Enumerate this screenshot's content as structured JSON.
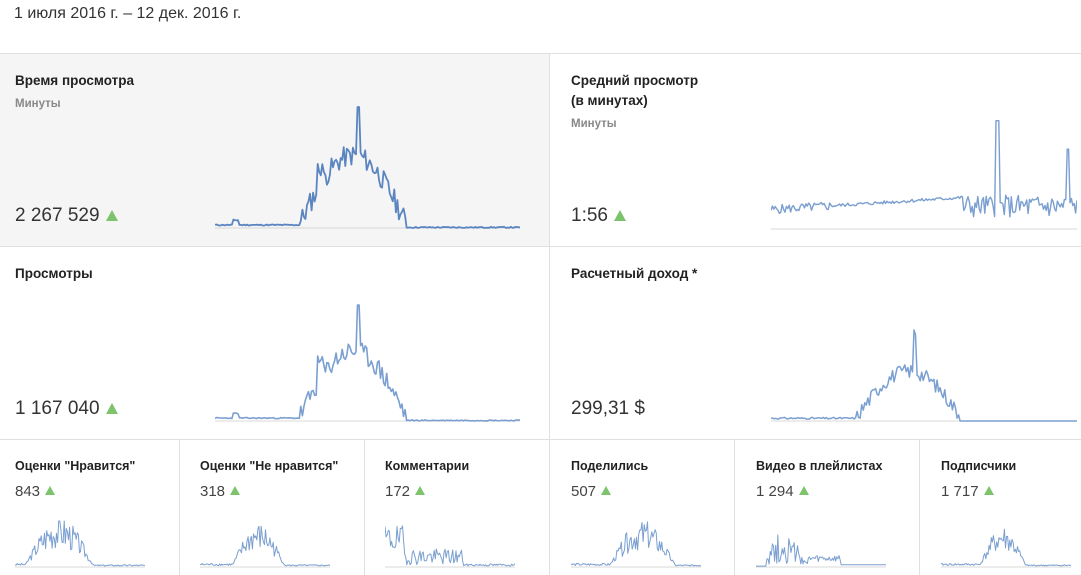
{
  "header": {
    "date_range": "1 июля 2016 г. – 12 дек. 2016 г."
  },
  "colors": {
    "line": "#5b85c0",
    "line_light": "#7a9fd0",
    "up": "#7cc36b",
    "selected_bg": "#f5f5f5"
  },
  "metrics_big": [
    {
      "title": "Время просмотра",
      "subtitle": "Минуты",
      "value": "2 267 529",
      "trend": "up",
      "icon": "triangle-up-icon"
    },
    {
      "title": "Средний просмотр (в минутах)",
      "title_line1": "Средний просмотр",
      "title_line2": "(в минутах)",
      "subtitle": "Минуты",
      "value": "1:56",
      "trend": "up",
      "icon": "triangle-up-icon"
    },
    {
      "title": "Просмотры",
      "value": "1 167 040",
      "trend": "up",
      "icon": "triangle-up-icon"
    },
    {
      "title": "Расчетный доход *",
      "value": "299,31 $"
    }
  ],
  "metrics_small": [
    {
      "title": "Оценки \"Нравится\"",
      "value": "843",
      "trend": "up"
    },
    {
      "title": "Оценки \"Не нравится\"",
      "value": "318",
      "trend": "up"
    },
    {
      "title": "Комментарии",
      "value": "172",
      "trend": "up"
    },
    {
      "title": "Поделились",
      "value": "507",
      "trend": "up"
    },
    {
      "title": "Видео в плейлистах",
      "value": "1 294",
      "trend": "up"
    },
    {
      "title": "Подписчики",
      "value": "1 717",
      "trend": "up"
    }
  ]
}
